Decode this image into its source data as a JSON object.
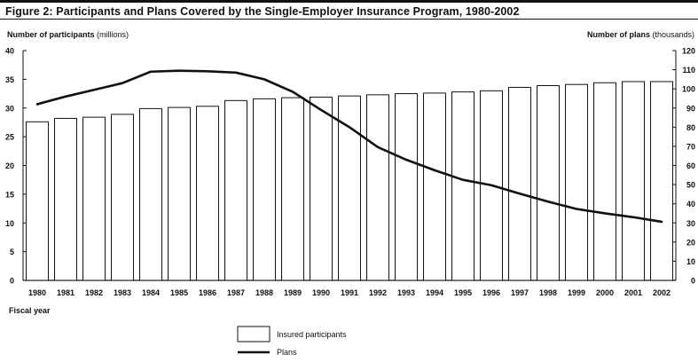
{
  "title": "Figure 2: Participants and Plans Covered by the Single-Employer Insurance Program, 1980-2002",
  "chart_data": {
    "type": "bar",
    "title": "Figure 2: Participants and Plans Covered by the Single-Employer Insurance Program, 1980-2002",
    "categories": [
      "1980",
      "1981",
      "1982",
      "1983",
      "1984",
      "1985",
      "1986",
      "1987",
      "1988",
      "1989",
      "1990",
      "1991",
      "1992",
      "1993",
      "1994",
      "1995",
      "1996",
      "1997",
      "1998",
      "1999",
      "2000",
      "2001",
      "2002"
    ],
    "xlabel": "Fiscal year",
    "ylabel_left": {
      "bold": "Number of participants",
      "unit": "(millions)"
    },
    "ylabel_right": {
      "bold": "Number of plans",
      "unit": "(thousands)"
    },
    "ylim_left": [
      0,
      40
    ],
    "yticks_left": [
      0,
      5,
      10,
      15,
      20,
      25,
      30,
      35,
      40
    ],
    "ylim_right": [
      0,
      120
    ],
    "yticks_right": [
      0,
      10,
      20,
      30,
      40,
      50,
      60,
      70,
      80,
      90,
      100,
      110,
      120
    ],
    "grid": false,
    "legend_position": "bottom-center",
    "series": [
      {
        "name": "Insured participants",
        "type": "bar",
        "axis": "left",
        "values": [
          27.6,
          28.2,
          28.4,
          28.9,
          29.9,
          30.1,
          30.3,
          31.3,
          31.6,
          31.8,
          31.9,
          32.1,
          32.3,
          32.5,
          32.6,
          32.8,
          33.0,
          33.6,
          33.9,
          34.1,
          34.4,
          34.6,
          34.6
        ],
        "color": "#ffffff",
        "stroke": "#111111"
      },
      {
        "name": "Plans",
        "type": "line",
        "axis": "right",
        "values": [
          92,
          96,
          99.5,
          103,
          109,
          109.5,
          109.2,
          108.5,
          105,
          98.5,
          89,
          80,
          69.6,
          63,
          57.5,
          52.5,
          49.7,
          45.3,
          41.1,
          37.3,
          35,
          33,
          30.6
        ],
        "color": "#111111"
      }
    ]
  }
}
